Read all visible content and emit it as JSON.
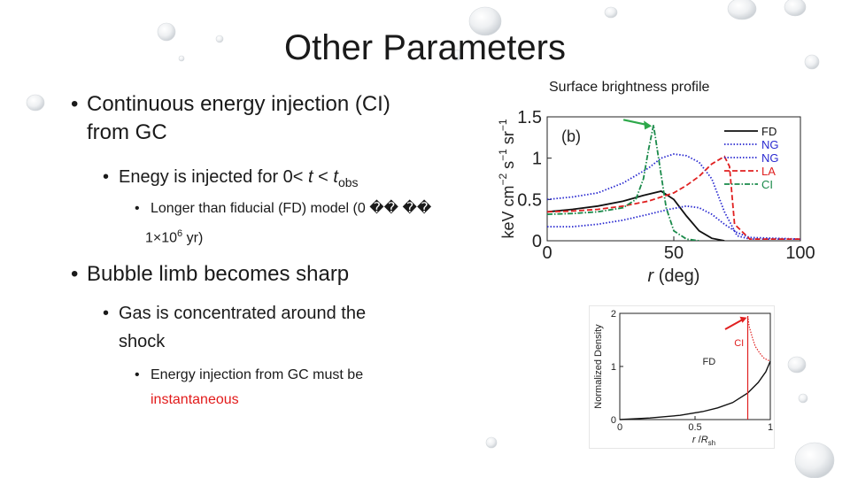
{
  "slide": {
    "title": "Other Parameters",
    "bullets": {
      "l1a_line1": "Continuous energy injection (CI)",
      "l1a_line2": "from GC",
      "l2a_prefix": "Enegy is injected for 0<",
      "l2a_t": "t",
      "l2a_lt": "<",
      "l2a_tobs": "t",
      "l2a_tobs_sub": "obs",
      "l3a_line1": "Longer than fiducial (FD) model (0 �� ��",
      "l3a_line2_pre": "1×10",
      "l3a_line2_sup": "6",
      "l3a_line2_post": " yr)",
      "l1b": "Bubble limb becomes sharp",
      "l2b_line1": "Gas is concentrated around the",
      "l2b_line2": "shock",
      "l3b_line1": "Energy injection from GC must be",
      "l3b_line2": "instantaneous"
    },
    "bullet_glyph": "•"
  },
  "surface_brightness": {
    "heading": "Surface brightness profile",
    "panel_label": "(b)",
    "y_unit": "keV cm",
    "y_exp1": "−2",
    "y_mid": " s",
    "y_exp2": "−1",
    "y_end": " sr",
    "y_exp3": "−1",
    "x_label_r": "r",
    "x_label_unit": " (deg)",
    "yticks": [
      "0",
      "0.5",
      "1",
      "1.5"
    ],
    "xticks": [
      "0",
      "50",
      "100"
    ],
    "legend": [
      {
        "label": "FD",
        "color": "#111111",
        "style": "solid"
      },
      {
        "label": "NG",
        "color": "#2a2ad0",
        "style": "dotted"
      },
      {
        "label": "NG",
        "color": "#2a2ad0",
        "style": "dotted"
      },
      {
        "label": "LA",
        "color": "#e02020",
        "style": "dashed"
      },
      {
        "label": "CI",
        "color": "#1a8a4a",
        "style": "dashdot"
      }
    ],
    "arrow_color": "#2da84a"
  },
  "density": {
    "y_label": "Normalized Density",
    "x_label_r": "r",
    "x_label_sep": " /",
    "x_label_R": "R",
    "x_label_sub": "sh",
    "yticks": [
      "0",
      "1",
      "2"
    ],
    "xticks": [
      "0",
      "0.5",
      "1"
    ],
    "label_fd": "FD",
    "label_ci": "CI",
    "ci_color": "#e02020",
    "arrow_color": "#e02020"
  },
  "chart_data": [
    {
      "type": "line",
      "title": "Surface brightness profile",
      "xlabel": "r (deg)",
      "ylabel": "keV cm−2 s−1 sr−1",
      "xlim": [
        0,
        100
      ],
      "ylim": [
        0,
        1.5
      ],
      "grid": false,
      "legend_position": "top-right",
      "series": [
        {
          "name": "FD",
          "x": [
            0,
            10,
            20,
            30,
            38,
            45,
            50,
            55,
            60,
            65,
            70
          ],
          "y": [
            0.35,
            0.38,
            0.42,
            0.48,
            0.55,
            0.6,
            0.5,
            0.3,
            0.12,
            0.03,
            0
          ]
        },
        {
          "name": "NG",
          "x": [
            0,
            10,
            20,
            30,
            40,
            45,
            50,
            55,
            60,
            65,
            70,
            75,
            80,
            100
          ],
          "y": [
            0.5,
            0.53,
            0.58,
            0.7,
            0.88,
            1.0,
            1.05,
            1.03,
            0.95,
            0.75,
            0.35,
            0.06,
            0.02,
            0.02
          ]
        },
        {
          "name": "NG",
          "x": [
            0,
            10,
            20,
            30,
            40,
            48,
            55,
            60,
            65,
            70,
            75,
            80,
            100
          ],
          "y": [
            0.17,
            0.17,
            0.2,
            0.25,
            0.32,
            0.38,
            0.42,
            0.4,
            0.32,
            0.2,
            0.1,
            0.04,
            0.02
          ]
        },
        {
          "name": "LA",
          "x": [
            0,
            10,
            20,
            30,
            40,
            50,
            55,
            60,
            65,
            70,
            72,
            74,
            80,
            100
          ],
          "y": [
            0.35,
            0.36,
            0.38,
            0.42,
            0.48,
            0.58,
            0.67,
            0.78,
            0.93,
            1.02,
            0.9,
            0.2,
            0.02,
            0.02
          ]
        },
        {
          "name": "CI",
          "x": [
            0,
            10,
            20,
            30,
            35,
            38,
            40,
            42,
            44,
            47,
            50,
            55,
            60
          ],
          "y": [
            0.32,
            0.33,
            0.35,
            0.4,
            0.5,
            0.75,
            1.1,
            1.4,
            1.0,
            0.4,
            0.12,
            0.02,
            0
          ]
        }
      ]
    },
    {
      "type": "line",
      "title": "",
      "xlabel": "r /Rsh",
      "ylabel": "Normalized Density",
      "xlim": [
        0,
        1
      ],
      "ylim": [
        0,
        2
      ],
      "grid": false,
      "series": [
        {
          "name": "FD",
          "x": [
            0,
            0.2,
            0.4,
            0.55,
            0.65,
            0.75,
            0.85,
            0.92,
            0.97,
            1.0
          ],
          "y": [
            0,
            0.03,
            0.08,
            0.15,
            0.22,
            0.32,
            0.5,
            0.7,
            0.9,
            1.1
          ]
        },
        {
          "name": "CI",
          "x": [
            0.85,
            0.86,
            0.88,
            0.9,
            0.93,
            0.96,
            1.0
          ],
          "y": [
            1.95,
            1.75,
            1.55,
            1.38,
            1.25,
            1.15,
            1.1
          ]
        }
      ],
      "annotations": [
        {
          "label": "CI",
          "x": 0.85
        }
      ]
    }
  ]
}
